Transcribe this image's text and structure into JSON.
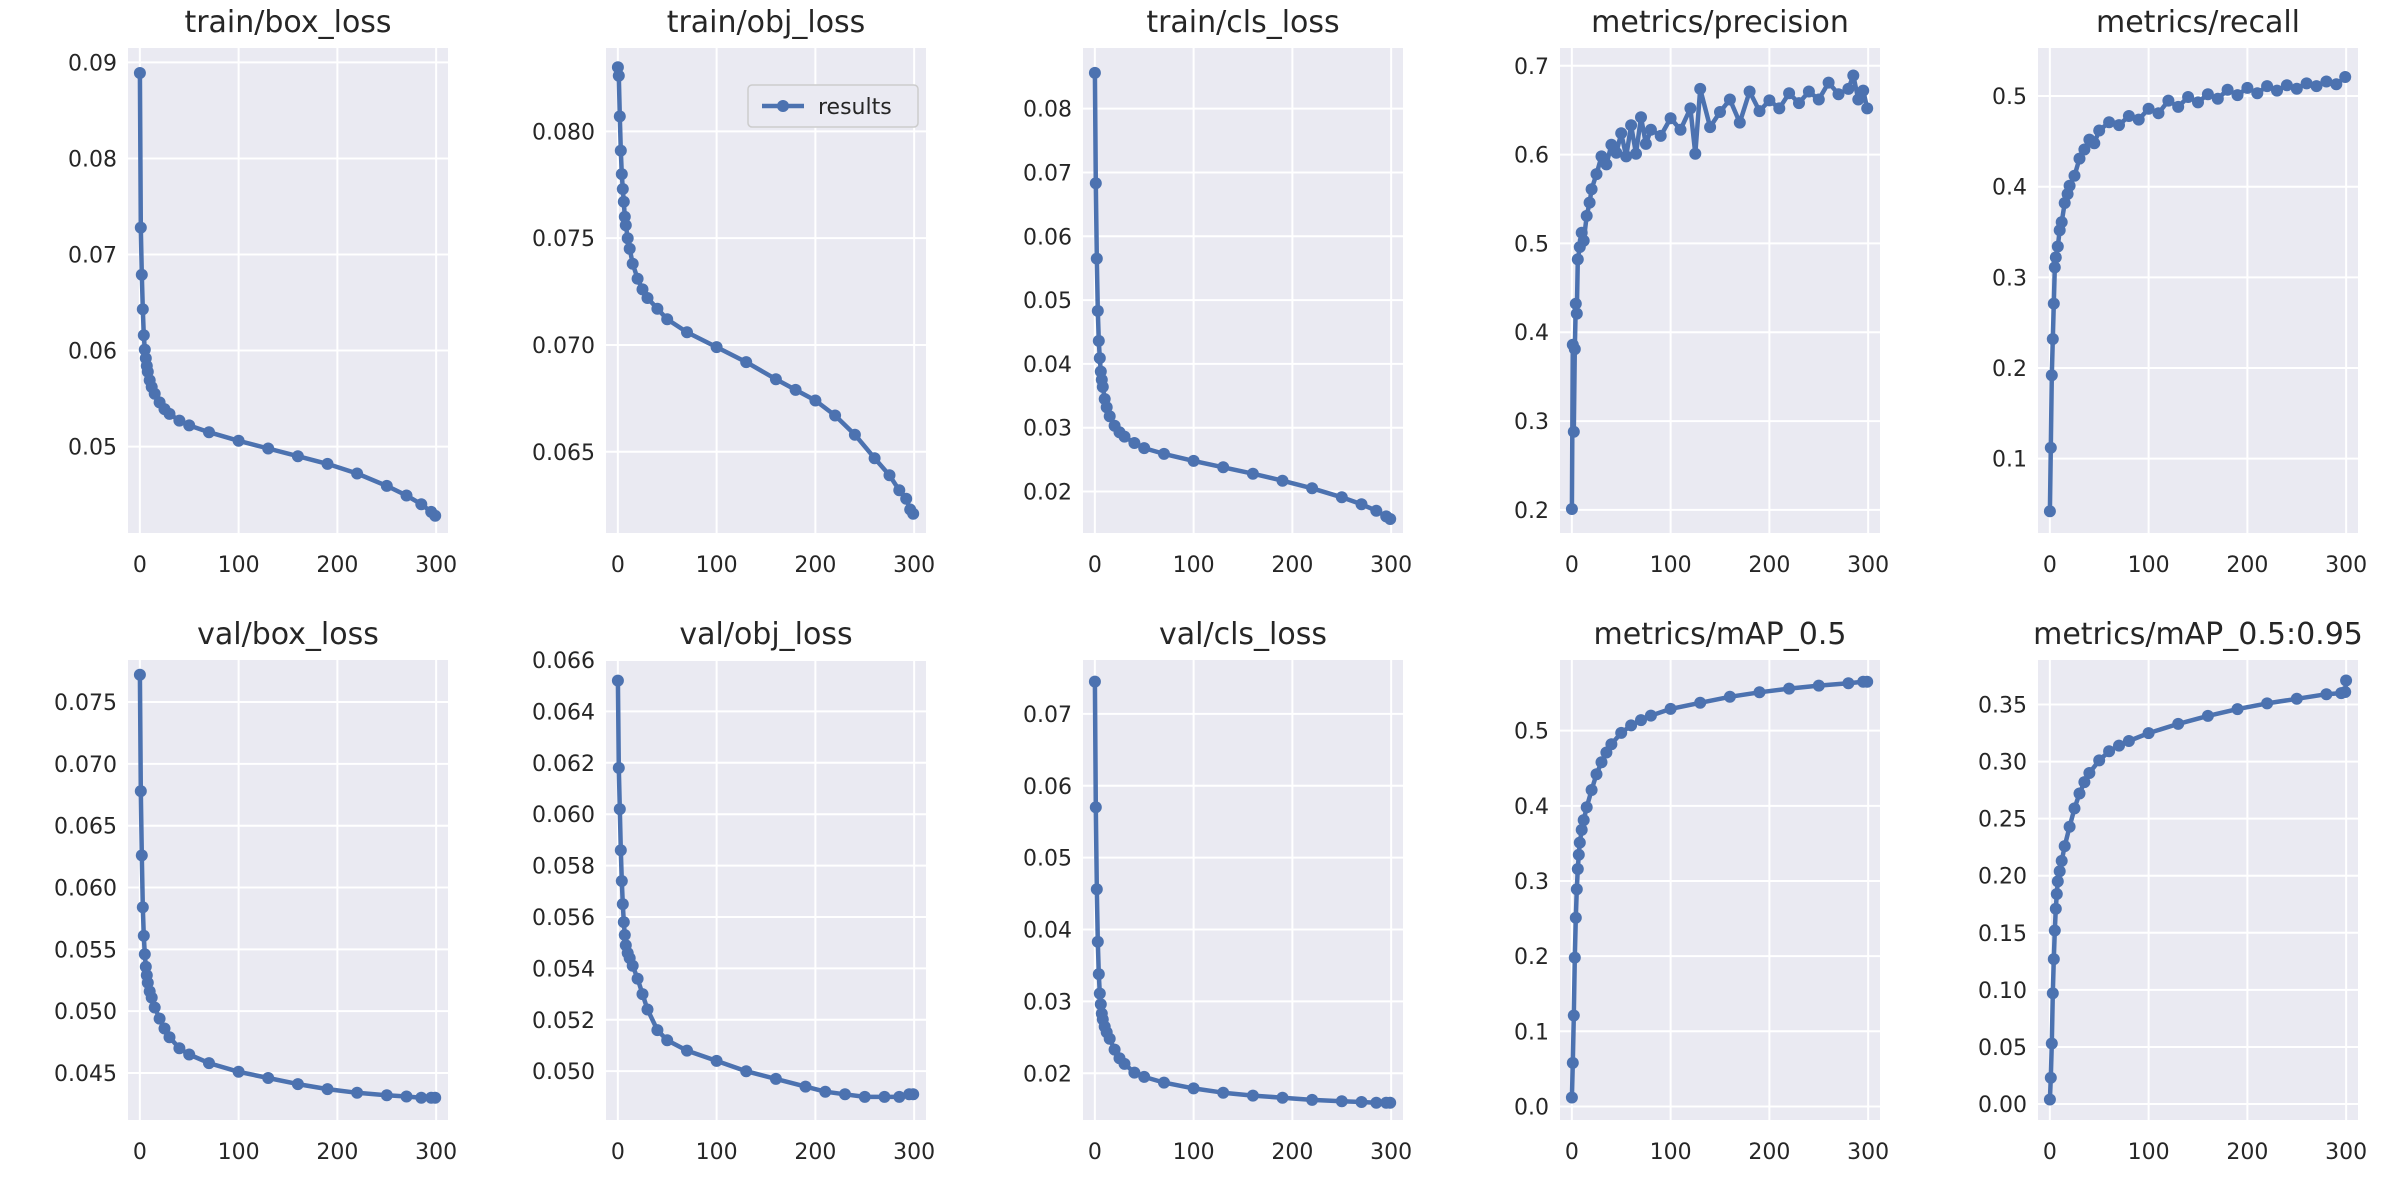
{
  "colors": {
    "background": "#ffffff",
    "plot_bg": "#eaeaf2",
    "grid": "#ffffff",
    "series": "#4c72b0",
    "text": "#262626",
    "legend_bg": "#eaeaf2",
    "legend_border": "#cccccc"
  },
  "chart_data": [
    {
      "type": "line",
      "title": "train/box_loss",
      "xlabel": "",
      "ylabel": "",
      "xlim": [
        -12,
        312
      ],
      "ylim": [
        0.041,
        0.0915
      ],
      "xticks": [
        0,
        100,
        200,
        300
      ],
      "xtick_labels": [
        "0",
        "100",
        "200",
        "300"
      ],
      "yticks": [
        0.05,
        0.06,
        0.07,
        0.08,
        0.09
      ],
      "ytick_labels": [
        "0.05",
        "0.06",
        "0.07",
        "0.08",
        "0.09"
      ],
      "series": [
        {
          "x": [
            0,
            1,
            2,
            3,
            4,
            5,
            6,
            7,
            8,
            10,
            12,
            15,
            20,
            25,
            30,
            40,
            50,
            70,
            100,
            130,
            160,
            190,
            220,
            250,
            270,
            285,
            295,
            299
          ],
          "y": [
            0.0889,
            0.0728,
            0.0679,
            0.0643,
            0.0616,
            0.0601,
            0.0592,
            0.0584,
            0.0578,
            0.0569,
            0.0562,
            0.0555,
            0.0546,
            0.0539,
            0.0534,
            0.0527,
            0.0522,
            0.0515,
            0.0506,
            0.0498,
            0.049,
            0.0482,
            0.0472,
            0.0459,
            0.0449,
            0.044,
            0.0432,
            0.0428
          ]
        }
      ]
    },
    {
      "type": "line",
      "title": "train/obj_loss",
      "xlabel": "",
      "ylabel": "",
      "xlim": [
        -12,
        312
      ],
      "ylim": [
        0.0612,
        0.0839
      ],
      "xticks": [
        0,
        100,
        200,
        300
      ],
      "xtick_labels": [
        "0",
        "100",
        "200",
        "300"
      ],
      "yticks": [
        0.065,
        0.07,
        0.075,
        0.08
      ],
      "ytick_labels": [
        "0.065",
        "0.070",
        "0.075",
        "0.080"
      ],
      "legend": {
        "entries": [
          "results"
        ],
        "placement": "upper right"
      },
      "series": [
        {
          "name": "results",
          "x": [
            0,
            1,
            2,
            3,
            4,
            5,
            6,
            7,
            8,
            10,
            12,
            15,
            20,
            25,
            30,
            40,
            50,
            70,
            100,
            130,
            160,
            180,
            200,
            220,
            240,
            260,
            275,
            285,
            292,
            296,
            299
          ],
          "y": [
            0.083,
            0.0826,
            0.0807,
            0.0791,
            0.078,
            0.0773,
            0.0767,
            0.076,
            0.0756,
            0.075,
            0.0745,
            0.0738,
            0.0731,
            0.0726,
            0.0722,
            0.0717,
            0.0712,
            0.0706,
            0.0699,
            0.0692,
            0.0684,
            0.0679,
            0.0674,
            0.0667,
            0.0658,
            0.0647,
            0.0639,
            0.0632,
            0.0628,
            0.0623,
            0.0621
          ]
        }
      ]
    },
    {
      "type": "line",
      "title": "train/cls_loss",
      "xlabel": "",
      "ylabel": "",
      "xlim": [
        -12,
        312
      ],
      "ylim": [
        0.0135,
        0.0895
      ],
      "xticks": [
        0,
        100,
        200,
        300
      ],
      "xtick_labels": [
        "0",
        "100",
        "200",
        "300"
      ],
      "yticks": [
        0.02,
        0.03,
        0.04,
        0.05,
        0.06,
        0.07,
        0.08
      ],
      "ytick_labels": [
        "0.02",
        "0.03",
        "0.04",
        "0.05",
        "0.06",
        "0.07",
        "0.08"
      ],
      "series": [
        {
          "x": [
            0,
            1,
            2,
            3,
            4,
            5,
            6,
            7,
            8,
            10,
            12,
            15,
            20,
            25,
            30,
            40,
            50,
            70,
            100,
            130,
            160,
            190,
            220,
            250,
            270,
            285,
            295,
            299
          ],
          "y": [
            0.0856,
            0.0683,
            0.0565,
            0.0483,
            0.0436,
            0.0409,
            0.0388,
            0.0375,
            0.0364,
            0.0345,
            0.0332,
            0.0318,
            0.0303,
            0.0293,
            0.0286,
            0.0276,
            0.0268,
            0.0259,
            0.0248,
            0.0238,
            0.0228,
            0.0217,
            0.0205,
            0.0191,
            0.018,
            0.017,
            0.0161,
            0.0157
          ]
        }
      ]
    },
    {
      "type": "line",
      "title": "metrics/precision",
      "xlabel": "",
      "ylabel": "",
      "xlim": [
        -12,
        312
      ],
      "ylim": [
        0.174,
        0.72
      ],
      "xticks": [
        0,
        100,
        200,
        300
      ],
      "xtick_labels": [
        "0",
        "100",
        "200",
        "300"
      ],
      "yticks": [
        0.2,
        0.3,
        0.4,
        0.5,
        0.6,
        0.7
      ],
      "ytick_labels": [
        "0.2",
        "0.3",
        "0.4",
        "0.5",
        "0.6",
        "0.7"
      ],
      "series": [
        {
          "x": [
            0,
            1,
            2,
            3,
            4,
            5,
            6,
            8,
            10,
            12,
            15,
            18,
            20,
            25,
            30,
            35,
            40,
            45,
            50,
            55,
            60,
            65,
            70,
            75,
            80,
            90,
            100,
            110,
            120,
            125,
            130,
            140,
            150,
            160,
            170,
            180,
            190,
            200,
            210,
            220,
            230,
            240,
            250,
            260,
            270,
            280,
            285,
            290,
            295,
            299
          ],
          "y": [
            0.201,
            0.386,
            0.288,
            0.381,
            0.432,
            0.421,
            0.482,
            0.496,
            0.512,
            0.503,
            0.531,
            0.546,
            0.561,
            0.578,
            0.598,
            0.589,
            0.611,
            0.602,
            0.624,
            0.598,
            0.633,
            0.601,
            0.642,
            0.612,
            0.628,
            0.621,
            0.641,
            0.628,
            0.652,
            0.601,
            0.674,
            0.631,
            0.648,
            0.662,
            0.636,
            0.671,
            0.649,
            0.661,
            0.652,
            0.669,
            0.658,
            0.671,
            0.662,
            0.681,
            0.668,
            0.674,
            0.689,
            0.662,
            0.672,
            0.652
          ]
        }
      ]
    },
    {
      "type": "line",
      "title": "metrics/recall",
      "xlabel": "",
      "ylabel": "",
      "xlim": [
        -12,
        312
      ],
      "ylim": [
        0.018,
        0.553
      ],
      "xticks": [
        0,
        100,
        200,
        300
      ],
      "xtick_labels": [
        "0",
        "100",
        "200",
        "300"
      ],
      "yticks": [
        0.1,
        0.2,
        0.3,
        0.4,
        0.5
      ],
      "ytick_labels": [
        "0.1",
        "0.2",
        "0.3",
        "0.4",
        "0.5"
      ],
      "series": [
        {
          "x": [
            0,
            1,
            2,
            3,
            4,
            5,
            6,
            8,
            10,
            12,
            15,
            18,
            20,
            25,
            30,
            35,
            40,
            45,
            50,
            60,
            70,
            80,
            90,
            100,
            110,
            120,
            130,
            140,
            150,
            160,
            170,
            180,
            190,
            200,
            210,
            220,
            230,
            240,
            250,
            260,
            270,
            280,
            290,
            299
          ],
          "y": [
            0.042,
            0.112,
            0.192,
            0.232,
            0.271,
            0.311,
            0.322,
            0.334,
            0.352,
            0.361,
            0.382,
            0.392,
            0.401,
            0.412,
            0.431,
            0.441,
            0.452,
            0.448,
            0.462,
            0.471,
            0.468,
            0.478,
            0.474,
            0.486,
            0.481,
            0.495,
            0.488,
            0.499,
            0.493,
            0.502,
            0.497,
            0.507,
            0.501,
            0.509,
            0.503,
            0.511,
            0.506,
            0.512,
            0.508,
            0.514,
            0.511,
            0.516,
            0.513,
            0.521
          ]
        }
      ]
    },
    {
      "type": "line",
      "title": "val/box_loss",
      "xlabel": "",
      "ylabel": "",
      "xlim": [
        -12,
        312
      ],
      "ylim": [
        0.0412,
        0.0784
      ],
      "xticks": [
        0,
        100,
        200,
        300
      ],
      "xtick_labels": [
        "0",
        "100",
        "200",
        "300"
      ],
      "yticks": [
        0.045,
        0.05,
        0.055,
        0.06,
        0.065,
        0.07,
        0.075
      ],
      "ytick_labels": [
        "0.045",
        "0.050",
        "0.055",
        "0.060",
        "0.065",
        "0.070",
        "0.075"
      ],
      "series": [
        {
          "x": [
            0,
            1,
            2,
            3,
            4,
            5,
            6,
            7,
            8,
            10,
            12,
            15,
            20,
            25,
            30,
            40,
            50,
            70,
            100,
            130,
            160,
            190,
            220,
            250,
            270,
            285,
            295,
            299
          ],
          "y": [
            0.0772,
            0.0678,
            0.0626,
            0.0584,
            0.0561,
            0.0546,
            0.0536,
            0.0529,
            0.0523,
            0.0516,
            0.0511,
            0.0503,
            0.0494,
            0.0486,
            0.0479,
            0.047,
            0.0465,
            0.0458,
            0.0451,
            0.0446,
            0.0441,
            0.0437,
            0.0434,
            0.0432,
            0.0431,
            0.043,
            0.043,
            0.043
          ]
        }
      ]
    },
    {
      "type": "line",
      "title": "val/obj_loss",
      "xlabel": "",
      "ylabel": "",
      "xlim": [
        -12,
        312
      ],
      "ylim": [
        0.0481,
        0.066
      ],
      "xticks": [
        0,
        100,
        200,
        300
      ],
      "xtick_labels": [
        "0",
        "100",
        "200",
        "300"
      ],
      "yticks": [
        0.05,
        0.052,
        0.054,
        0.056,
        0.058,
        0.06,
        0.062,
        0.064,
        0.066
      ],
      "ytick_labels": [
        "0.050",
        "0.052",
        "0.054",
        "0.056",
        "0.058",
        "0.060",
        "0.062",
        "0.064",
        "0.066"
      ],
      "series": [
        {
          "x": [
            0,
            1,
            2,
            3,
            4,
            5,
            6,
            7,
            8,
            10,
            12,
            15,
            20,
            25,
            30,
            40,
            50,
            70,
            100,
            130,
            160,
            190,
            210,
            230,
            250,
            270,
            285,
            295,
            299
          ],
          "y": [
            0.0652,
            0.0618,
            0.0602,
            0.0586,
            0.0574,
            0.0565,
            0.0558,
            0.0553,
            0.0549,
            0.0546,
            0.0544,
            0.0541,
            0.0536,
            0.053,
            0.0524,
            0.0516,
            0.0512,
            0.0508,
            0.0504,
            0.05,
            0.0497,
            0.0494,
            0.0492,
            0.0491,
            0.049,
            0.049,
            0.049,
            0.0491,
            0.0491
          ]
        }
      ]
    },
    {
      "type": "line",
      "title": "val/cls_loss",
      "xlabel": "",
      "ylabel": "",
      "xlim": [
        -12,
        312
      ],
      "ylim": [
        0.0135,
        0.0775
      ],
      "xticks": [
        0,
        100,
        200,
        300
      ],
      "xtick_labels": [
        "0",
        "100",
        "200",
        "300"
      ],
      "yticks": [
        0.02,
        0.03,
        0.04,
        0.05,
        0.06,
        0.07
      ],
      "ytick_labels": [
        "0.02",
        "0.03",
        "0.04",
        "0.05",
        "0.06",
        "0.07"
      ],
      "series": [
        {
          "x": [
            0,
            1,
            2,
            3,
            4,
            5,
            6,
            7,
            8,
            10,
            12,
            15,
            20,
            25,
            30,
            40,
            50,
            70,
            100,
            130,
            160,
            190,
            220,
            250,
            270,
            285,
            295,
            299
          ],
          "y": [
            0.0745,
            0.057,
            0.0456,
            0.0383,
            0.0338,
            0.0311,
            0.0296,
            0.0283,
            0.0275,
            0.0265,
            0.0257,
            0.0248,
            0.0233,
            0.0221,
            0.0213,
            0.0201,
            0.0195,
            0.0187,
            0.0179,
            0.0173,
            0.0169,
            0.0166,
            0.0163,
            0.0161,
            0.016,
            0.0159,
            0.0159,
            0.0159
          ]
        }
      ]
    },
    {
      "type": "line",
      "title": "metrics/mAP_0.5",
      "xlabel": "",
      "ylabel": "",
      "xlim": [
        -12,
        312
      ],
      "ylim": [
        -0.018,
        0.594
      ],
      "xticks": [
        0,
        100,
        200,
        300
      ],
      "xtick_labels": [
        "0",
        "100",
        "200",
        "300"
      ],
      "yticks": [
        0.0,
        0.1,
        0.2,
        0.3,
        0.4,
        0.5
      ],
      "ytick_labels": [
        "0.0",
        "0.1",
        "0.2",
        "0.3",
        "0.4",
        "0.5"
      ],
      "series": [
        {
          "x": [
            0,
            1,
            2,
            3,
            4,
            5,
            6,
            7,
            8,
            10,
            12,
            15,
            20,
            25,
            30,
            35,
            40,
            50,
            60,
            70,
            80,
            100,
            130,
            160,
            190,
            220,
            250,
            280,
            295,
            299
          ],
          "y": [
            0.012,
            0.058,
            0.121,
            0.198,
            0.251,
            0.289,
            0.316,
            0.335,
            0.351,
            0.368,
            0.381,
            0.398,
            0.421,
            0.442,
            0.458,
            0.471,
            0.482,
            0.497,
            0.507,
            0.514,
            0.52,
            0.529,
            0.537,
            0.545,
            0.551,
            0.556,
            0.56,
            0.563,
            0.565,
            0.565
          ]
        }
      ]
    },
    {
      "type": "line",
      "title": "metrics/mAP_0.5:0.95",
      "xlabel": "",
      "ylabel": "",
      "xlim": [
        -12,
        312
      ],
      "ylim": [
        -0.014,
        0.389
      ],
      "xticks": [
        0,
        100,
        200,
        300
      ],
      "xtick_labels": [
        "0",
        "100",
        "200",
        "300"
      ],
      "yticks": [
        0.0,
        0.05,
        0.1,
        0.15,
        0.2,
        0.25,
        0.3,
        0.35
      ],
      "ytick_labels": [
        "0.00",
        "0.05",
        "0.10",
        "0.15",
        "0.20",
        "0.25",
        "0.30",
        "0.35"
      ],
      "series": [
        {
          "x": [
            0,
            1,
            2,
            3,
            4,
            5,
            6,
            7,
            8,
            10,
            12,
            15,
            20,
            25,
            30,
            35,
            40,
            50,
            60,
            70,
            80,
            100,
            130,
            160,
            190,
            220,
            250,
            280,
            295,
            299,
            300
          ],
          "y": [
            0.004,
            0.023,
            0.053,
            0.097,
            0.127,
            0.152,
            0.171,
            0.184,
            0.195,
            0.204,
            0.213,
            0.226,
            0.243,
            0.259,
            0.272,
            0.282,
            0.29,
            0.301,
            0.309,
            0.314,
            0.318,
            0.325,
            0.333,
            0.34,
            0.346,
            0.351,
            0.355,
            0.359,
            0.36,
            0.361,
            0.371
          ]
        }
      ]
    }
  ]
}
